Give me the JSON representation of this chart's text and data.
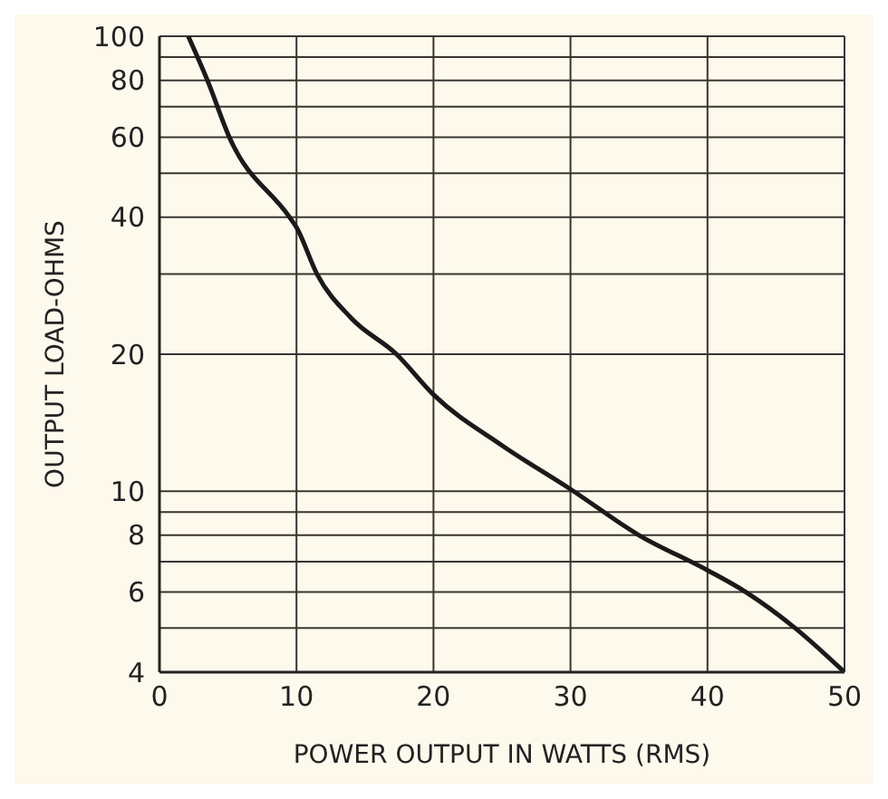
{
  "chart_data": {
    "type": "line",
    "xlabel": "POWER OUTPUT IN WATTS (RMS)",
    "ylabel": "OUTPUT LOAD-OHMS",
    "log": "y",
    "grid": true,
    "marker": "none",
    "line_style": "solid",
    "legend": false,
    "xlim": [
      0,
      50
    ],
    "xticks": [
      0,
      10,
      20,
      30,
      40,
      50
    ],
    "ylim": [
      4,
      100
    ],
    "yticks": [
      4,
      {
        "value": 5,
        "label": null
      },
      6,
      {
        "value": 7,
        "label": null
      },
      8,
      {
        "value": 9,
        "label": null
      },
      10,
      20,
      {
        "value": 30,
        "label": null
      },
      40,
      {
        "value": 50,
        "label": null
      },
      60,
      {
        "value": 70,
        "label": null
      },
      80,
      {
        "value": 90,
        "label": null
      },
      100
    ],
    "series": [
      {
        "color": "#1a1a1a",
        "x": [
          2.1,
          3.5,
          5.1,
          9.5,
          10,
          11.5,
          14,
          17.3,
          20,
          25,
          30,
          35,
          40,
          42.8,
          46.4,
          50
        ],
        "values": [
          100,
          80,
          60,
          40,
          38,
          30,
          24,
          20,
          16.3,
          12.6,
          10.1,
          8,
          6.7,
          6,
          5,
          4
        ]
      }
    ]
  }
}
